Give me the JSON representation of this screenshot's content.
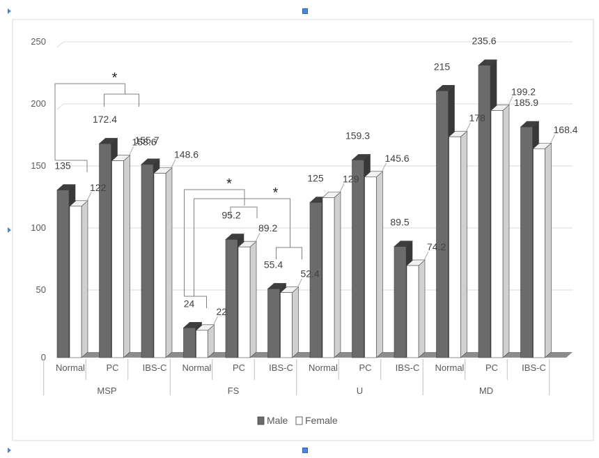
{
  "chart_data": {
    "type": "bar",
    "categories": [
      "Normal",
      "PC",
      "IBS-C",
      "Normal",
      "PC",
      "IBS-C",
      "Normal",
      "PC",
      "IBS-C",
      "Normal",
      "PC",
      "IBS-C"
    ],
    "groups": [
      {
        "label": "MSP",
        "categories": [
          "Normal",
          "PC",
          "IBS-C"
        ]
      },
      {
        "label": "FS",
        "categories": [
          "Normal",
          "PC",
          "IBS-C"
        ]
      },
      {
        "label": "U",
        "categories": [
          "Normal",
          "PC",
          "IBS-C"
        ]
      },
      {
        "label": "MD",
        "categories": [
          "Normal",
          "PC",
          "IBS-C"
        ]
      }
    ],
    "series": [
      {
        "name": "Male",
        "color": "#6b6b6b",
        "values": [
          135,
          172.4,
          155.7,
          24,
          95.2,
          55.4,
          125,
          159.3,
          89.5,
          215,
          235.6,
          185.9
        ]
      },
      {
        "name": "Female",
        "color": "#ffffff",
        "values": [
          122,
          158.6,
          148.6,
          22,
          89.2,
          52.4,
          129,
          145.6,
          74.2,
          178,
          199.2,
          168.4
        ]
      }
    ],
    "data_labels": {
      "Male": [
        "135",
        "172.4",
        "155.7",
        "24",
        "95.2",
        "55.4",
        "125",
        "159.3",
        "89.5",
        "215",
        "235.6",
        "185.9"
      ],
      "Female": [
        "122",
        "158.6",
        "148.6",
        "22",
        "89.2",
        "52.4",
        "129",
        "145.6",
        "74.2",
        "178",
        "199.2",
        "168.4"
      ]
    },
    "yticks": [
      "0",
      "50",
      "100",
      "150",
      "200",
      "250"
    ],
    "ylim": [
      0,
      250
    ],
    "grid": true,
    "legend_position": "bottom",
    "significance_marks": [
      "*",
      "*",
      "*"
    ],
    "title": "",
    "xlabel": "",
    "ylabel": ""
  }
}
